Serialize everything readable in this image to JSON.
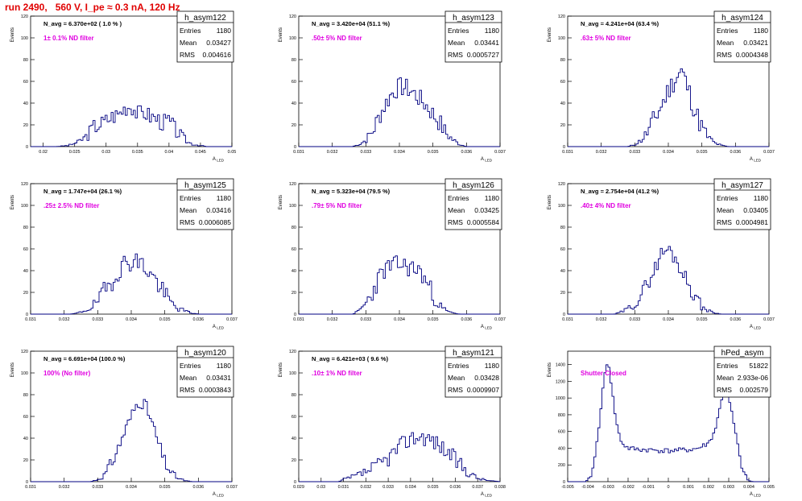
{
  "header": {
    "title": "run 2490,   560 V, I_pe ≈ 0.3 nA, 120 Hz"
  },
  "common": {
    "ylabel": "Events",
    "xlabel": "A_LED",
    "stat_labels": [
      "Entries",
      "Mean",
      "RMS"
    ],
    "hist_color": "#000080",
    "annotation_color": "#e000e0"
  },
  "chart_data": [
    {
      "type": "histogram",
      "name": "h_asym122",
      "stats": {
        "Entries": "1180",
        "Mean": "0.03427",
        "RMS": "0.004616"
      },
      "navg": "N_avg = 6.370e+02 ( 1.0 % )",
      "note": "1± 0.1% ND filter",
      "xlim": [
        0.018,
        0.05
      ],
      "ylim": [
        0,
        120
      ],
      "xticks": [
        "0.02",
        "0.025",
        "0.03",
        "0.035",
        "0.04",
        "0.045",
        "0.05"
      ],
      "xtick_vals": [
        0.02,
        0.025,
        0.03,
        0.035,
        0.04,
        0.045,
        0.05
      ],
      "yticks": [
        "0",
        "20",
        "40",
        "60",
        "80",
        "100",
        "120"
      ],
      "curve": [
        [
          0.018,
          0
        ],
        [
          0.022,
          0
        ],
        [
          0.024,
          1
        ],
        [
          0.0255,
          4
        ],
        [
          0.027,
          10
        ],
        [
          0.028,
          18
        ],
        [
          0.0295,
          22
        ],
        [
          0.031,
          28
        ],
        [
          0.032,
          30
        ],
        [
          0.033,
          36
        ],
        [
          0.034,
          38
        ],
        [
          0.035,
          30
        ],
        [
          0.036,
          32
        ],
        [
          0.037,
          28
        ],
        [
          0.038,
          26
        ],
        [
          0.039,
          22
        ],
        [
          0.04,
          24
        ],
        [
          0.041,
          15
        ],
        [
          0.042,
          10
        ],
        [
          0.043,
          4
        ],
        [
          0.044,
          2
        ],
        [
          0.045,
          1
        ],
        [
          0.046,
          0
        ],
        [
          0.05,
          0
        ]
      ],
      "jitter": 8,
      "seed": 3
    },
    {
      "type": "histogram",
      "name": "h_asym123",
      "stats": {
        "Entries": "1180",
        "Mean": "0.03441",
        "RMS": "0.0005727"
      },
      "navg": "N_avg = 3.420e+04 (51.1 %)",
      "note": ".50± 5% ND filter",
      "xlim": [
        0.031,
        0.037
      ],
      "ylim": [
        0,
        120
      ],
      "xticks": [
        "0.031",
        "0.032",
        "0.033",
        "0.034",
        "0.035",
        "0.036",
        "0.037"
      ],
      "xtick_vals": [
        0.031,
        0.032,
        0.033,
        0.034,
        0.035,
        0.036,
        0.037
      ],
      "yticks": [
        "0",
        "20",
        "40",
        "60",
        "80",
        "100",
        "120"
      ],
      "curve": [
        [
          0.031,
          0
        ],
        [
          0.0326,
          0
        ],
        [
          0.0328,
          2
        ],
        [
          0.033,
          6
        ],
        [
          0.0332,
          14
        ],
        [
          0.0334,
          28
        ],
        [
          0.0336,
          40
        ],
        [
          0.0338,
          50
        ],
        [
          0.034,
          55
        ],
        [
          0.0342,
          54
        ],
        [
          0.0344,
          50
        ],
        [
          0.0346,
          44
        ],
        [
          0.0348,
          38
        ],
        [
          0.035,
          30
        ],
        [
          0.0352,
          22
        ],
        [
          0.0354,
          12
        ],
        [
          0.0356,
          6
        ],
        [
          0.0358,
          2
        ],
        [
          0.036,
          0
        ],
        [
          0.037,
          0
        ]
      ],
      "jitter": 9,
      "seed": 7
    },
    {
      "type": "histogram",
      "name": "h_asym124",
      "stats": {
        "Entries": "1180",
        "Mean": "0.03421",
        "RMS": "0.0004348"
      },
      "navg": "N_avg = 4.241e+04 (63.4 %)",
      "note": ".63± 5% ND filter",
      "xlim": [
        0.031,
        0.037
      ],
      "ylim": [
        0,
        120
      ],
      "xticks": [
        "0.031",
        "0.032",
        "0.033",
        "0.034",
        "0.035",
        "0.036",
        "0.037"
      ],
      "xtick_vals": [
        0.031,
        0.032,
        0.033,
        0.034,
        0.035,
        0.036,
        0.037
      ],
      "yticks": [
        "0",
        "20",
        "40",
        "60",
        "80",
        "100",
        "120"
      ],
      "curve": [
        [
          0.031,
          0
        ],
        [
          0.0328,
          0
        ],
        [
          0.033,
          2
        ],
        [
          0.0332,
          6
        ],
        [
          0.0334,
          14
        ],
        [
          0.0336,
          26
        ],
        [
          0.0338,
          38
        ],
        [
          0.034,
          52
        ],
        [
          0.0342,
          62
        ],
        [
          0.0344,
          70
        ],
        [
          0.0346,
          52
        ],
        [
          0.0348,
          32
        ],
        [
          0.035,
          18
        ],
        [
          0.0352,
          8
        ],
        [
          0.0354,
          3
        ],
        [
          0.0356,
          1
        ],
        [
          0.0358,
          0
        ],
        [
          0.037,
          0
        ]
      ],
      "jitter": 10,
      "seed": 11
    },
    {
      "type": "histogram",
      "name": "h_asym125",
      "stats": {
        "Entries": "1180",
        "Mean": "0.03416",
        "RMS": "0.0006085"
      },
      "navg": "N_avg = 1.747e+04 (26.1 %)",
      "note": ".25± 2.5% ND filter",
      "xlim": [
        0.031,
        0.037
      ],
      "ylim": [
        0,
        120
      ],
      "xticks": [
        "0.031",
        "0.032",
        "0.033",
        "0.034",
        "0.035",
        "0.036",
        "0.037"
      ],
      "xtick_vals": [
        0.031,
        0.032,
        0.033,
        0.034,
        0.035,
        0.036,
        0.037
      ],
      "yticks": [
        "0",
        "20",
        "40",
        "60",
        "80",
        "100",
        "120"
      ],
      "curve": [
        [
          0.031,
          0
        ],
        [
          0.0322,
          0
        ],
        [
          0.0324,
          1
        ],
        [
          0.0326,
          3
        ],
        [
          0.0328,
          6
        ],
        [
          0.033,
          12
        ],
        [
          0.0332,
          20
        ],
        [
          0.0334,
          30
        ],
        [
          0.0336,
          40
        ],
        [
          0.0338,
          46
        ],
        [
          0.034,
          50
        ],
        [
          0.0342,
          48
        ],
        [
          0.0344,
          44
        ],
        [
          0.0346,
          36
        ],
        [
          0.0348,
          28
        ],
        [
          0.035,
          18
        ],
        [
          0.0352,
          10
        ],
        [
          0.0354,
          5
        ],
        [
          0.0356,
          3
        ],
        [
          0.0358,
          1
        ],
        [
          0.036,
          0
        ],
        [
          0.037,
          0
        ]
      ],
      "jitter": 10,
      "seed": 19
    },
    {
      "type": "histogram",
      "name": "h_asym126",
      "stats": {
        "Entries": "1180",
        "Mean": "0.03425",
        "RMS": "0.0005584"
      },
      "navg": "N_avg = 5.323e+04 (79.5 %)",
      "note": ".79± 5% ND filter",
      "xlim": [
        0.031,
        0.037
      ],
      "ylim": [
        0,
        120
      ],
      "xticks": [
        "0.031",
        "0.032",
        "0.033",
        "0.034",
        "0.035",
        "0.036",
        "0.037"
      ],
      "xtick_vals": [
        0.031,
        0.032,
        0.033,
        0.034,
        0.035,
        0.036,
        0.037
      ],
      "yticks": [
        "0",
        "20",
        "40",
        "60",
        "80",
        "100",
        "120"
      ],
      "curve": [
        [
          0.031,
          0
        ],
        [
          0.0326,
          0
        ],
        [
          0.0328,
          3
        ],
        [
          0.033,
          10
        ],
        [
          0.0332,
          20
        ],
        [
          0.0334,
          34
        ],
        [
          0.0336,
          42
        ],
        [
          0.0338,
          44
        ],
        [
          0.034,
          46
        ],
        [
          0.0342,
          44
        ],
        [
          0.0344,
          42
        ],
        [
          0.0346,
          40
        ],
        [
          0.0348,
          30
        ],
        [
          0.035,
          18
        ],
        [
          0.0352,
          8
        ],
        [
          0.0354,
          3
        ],
        [
          0.0356,
          1
        ],
        [
          0.0358,
          0
        ],
        [
          0.037,
          0
        ]
      ],
      "jitter": 9,
      "seed": 23
    },
    {
      "type": "histogram",
      "name": "h_asym127",
      "stats": {
        "Entries": "1180",
        "Mean": "0.03405",
        "RMS": "0.0004981"
      },
      "navg": "N_avg = 2.754e+04 (41.2 %)",
      "note": ".40± 4% ND filter",
      "xlim": [
        0.031,
        0.037
      ],
      "ylim": [
        0,
        120
      ],
      "xticks": [
        "0.031",
        "0.032",
        "0.033",
        "0.034",
        "0.035",
        "0.036",
        "0.037"
      ],
      "xtick_vals": [
        0.031,
        0.032,
        0.033,
        0.034,
        0.035,
        0.036,
        0.037
      ],
      "yticks": [
        "0",
        "20",
        "40",
        "60",
        "80",
        "100",
        "120"
      ],
      "curve": [
        [
          0.031,
          0
        ],
        [
          0.0324,
          0
        ],
        [
          0.0326,
          2
        ],
        [
          0.0328,
          5
        ],
        [
          0.033,
          10
        ],
        [
          0.0332,
          18
        ],
        [
          0.0334,
          30
        ],
        [
          0.0336,
          42
        ],
        [
          0.0338,
          56
        ],
        [
          0.034,
          60
        ],
        [
          0.0342,
          52
        ],
        [
          0.0344,
          40
        ],
        [
          0.0346,
          28
        ],
        [
          0.0348,
          16
        ],
        [
          0.035,
          7
        ],
        [
          0.0352,
          3
        ],
        [
          0.0354,
          1
        ],
        [
          0.0356,
          0
        ],
        [
          0.037,
          0
        ]
      ],
      "jitter": 7,
      "seed": 29
    },
    {
      "type": "histogram",
      "name": "h_asym120",
      "stats": {
        "Entries": "1180",
        "Mean": "0.03431",
        "RMS": "0.0003843"
      },
      "navg": "N_avg = 6.691e+04 (100.0 %)",
      "note": "100% (No filter)",
      "xlim": [
        0.031,
        0.037
      ],
      "ylim": [
        0,
        120
      ],
      "xticks": [
        "0.031",
        "0.032",
        "0.033",
        "0.034",
        "0.035",
        "0.036",
        "0.037"
      ],
      "xtick_vals": [
        0.031,
        0.032,
        0.033,
        0.034,
        0.035,
        0.036,
        0.037
      ],
      "yticks": [
        "0",
        "20",
        "40",
        "60",
        "80",
        "100",
        "120"
      ],
      "curve": [
        [
          0.031,
          0
        ],
        [
          0.0328,
          0
        ],
        [
          0.033,
          2
        ],
        [
          0.0332,
          6
        ],
        [
          0.0334,
          16
        ],
        [
          0.0336,
          30
        ],
        [
          0.0338,
          46
        ],
        [
          0.034,
          60
        ],
        [
          0.0342,
          74
        ],
        [
          0.0344,
          72
        ],
        [
          0.0346,
          56
        ],
        [
          0.0348,
          36
        ],
        [
          0.035,
          18
        ],
        [
          0.0352,
          8
        ],
        [
          0.0354,
          3
        ],
        [
          0.0356,
          1
        ],
        [
          0.0358,
          0
        ],
        [
          0.037,
          0
        ]
      ],
      "jitter": 6,
      "seed": 31
    },
    {
      "type": "histogram",
      "name": "h_asym121",
      "stats": {
        "Entries": "1180",
        "Mean": "0.03428",
        "RMS": "0.0009907"
      },
      "navg": "N_avg = 6.421e+03 ( 9.6 %)",
      "note": ".10± 1% ND filter",
      "xlim": [
        0.029,
        0.038
      ],
      "ylim": [
        0,
        120
      ],
      "xticks": [
        "0.029",
        "0.03",
        "0.031",
        "0.032",
        "0.033",
        "0.034",
        "0.035",
        "0.036",
        "0.037",
        "0.038"
      ],
      "xtick_vals": [
        0.029,
        0.03,
        0.031,
        0.032,
        0.033,
        0.034,
        0.035,
        0.036,
        0.037,
        0.038
      ],
      "yticks": [
        "0",
        "20",
        "40",
        "60",
        "80",
        "100",
        "120"
      ],
      "curve": [
        [
          0.029,
          0
        ],
        [
          0.0308,
          0
        ],
        [
          0.031,
          2
        ],
        [
          0.0315,
          5
        ],
        [
          0.032,
          9
        ],
        [
          0.0325,
          14
        ],
        [
          0.033,
          22
        ],
        [
          0.0335,
          32
        ],
        [
          0.034,
          40
        ],
        [
          0.0345,
          42
        ],
        [
          0.035,
          38
        ],
        [
          0.0355,
          30
        ],
        [
          0.036,
          20
        ],
        [
          0.0365,
          10
        ],
        [
          0.037,
          3
        ],
        [
          0.0375,
          1
        ],
        [
          0.038,
          0
        ]
      ],
      "jitter": 8,
      "seed": 37
    },
    {
      "type": "histogram",
      "name": "hPed_asym",
      "stats": {
        "Entries": "51822",
        "Mean": "2.933e-06",
        "RMS": "0.002579"
      },
      "navg": "",
      "note": "Shutter Closed",
      "xlim": [
        -0.005,
        0.005
      ],
      "ylim": [
        0,
        1560
      ],
      "xticks": [
        "-0.005",
        "-0.004",
        "-0.003",
        "-0.002",
        "-0.001",
        "0",
        "0.001",
        "0.002",
        "0.003",
        "0.004",
        "0.005"
      ],
      "xtick_vals": [
        -0.005,
        -0.004,
        -0.003,
        -0.002,
        -0.001,
        0,
        0.001,
        0.002,
        0.003,
        0.004,
        0.005
      ],
      "yticks": [
        "0",
        "200",
        "400",
        "600",
        "800",
        "1000",
        "1200",
        "1400"
      ],
      "ytick_vals": [
        0,
        200,
        400,
        600,
        800,
        1000,
        1200,
        1400
      ],
      "curve": [
        [
          -0.005,
          0
        ],
        [
          -0.0041,
          0
        ],
        [
          -0.0039,
          40
        ],
        [
          -0.0037,
          200
        ],
        [
          -0.0035,
          560
        ],
        [
          -0.0033,
          1000
        ],
        [
          -0.0031,
          1380
        ],
        [
          -0.003,
          1460
        ],
        [
          -0.0029,
          1300
        ],
        [
          -0.0027,
          900
        ],
        [
          -0.0025,
          600
        ],
        [
          -0.0023,
          460
        ],
        [
          -0.002,
          400
        ],
        [
          -0.0015,
          385
        ],
        [
          -0.001,
          380
        ],
        [
          0,
          370
        ],
        [
          0.001,
          380
        ],
        [
          0.0015,
          400
        ],
        [
          0.002,
          460
        ],
        [
          0.0023,
          600
        ],
        [
          0.0025,
          800
        ],
        [
          0.0027,
          1060
        ],
        [
          0.0029,
          1120
        ],
        [
          0.003,
          1000
        ],
        [
          0.0032,
          760
        ],
        [
          0.0034,
          500
        ],
        [
          0.0036,
          220
        ],
        [
          0.0038,
          70
        ],
        [
          0.004,
          10
        ],
        [
          0.0042,
          0
        ],
        [
          0.005,
          0
        ]
      ],
      "jitter": 30,
      "seed": 41
    }
  ]
}
